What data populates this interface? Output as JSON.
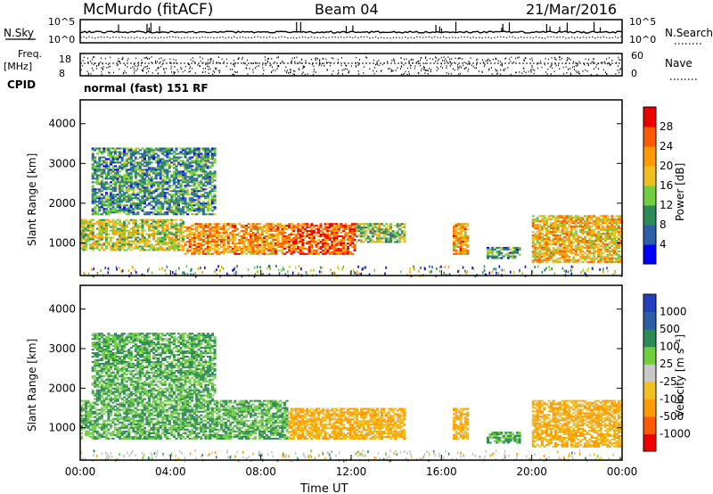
{
  "header": {
    "station": "McMurdo (fitACF)",
    "beam": "Beam 04",
    "date": "21/Mar/2016"
  },
  "side_labels": {
    "nsky": "N.Sky",
    "nsearch": "N.Search",
    "freq_line1": "Freq.",
    "freq_line2": "[MHz]",
    "nave": "Nave",
    "cpid": "CPID",
    "cpid_value": "normal (fast) 151 RF",
    "noise_ticks_left": [
      "10^5",
      "10^0"
    ],
    "noise_ticks_right": [
      "10^5",
      "10^0"
    ],
    "freq_ticks": [
      "18",
      "8"
    ],
    "nave_ticks": [
      "60",
      "0"
    ]
  },
  "colors": {
    "power": [
      "#0000ff",
      "#2c5fa8",
      "#2e8b57",
      "#6fcf3f",
      "#f0c020",
      "#ff9a00",
      "#ff5a00",
      "#ee0000"
    ],
    "velocity": [
      "#ee0000",
      "#ff5a00",
      "#ff9a00",
      "#f0c020",
      "#c8c8c8",
      "#6fcf3f",
      "#2e8b57",
      "#2c5fa8",
      "#2040c0"
    ],
    "frame": "#000000"
  },
  "chart_data": [
    {
      "type": "heatmap",
      "title": "Power",
      "xlabel": "Time UT",
      "ylabel": "Slant Range [km]",
      "x_ticks": [
        "00:00",
        "04:00",
        "08:00",
        "12:00",
        "16:00",
        "20:00",
        "00:00"
      ],
      "y_ticks": [
        "1000",
        "2000",
        "3000",
        "4000"
      ],
      "ylim": [
        180,
        4600
      ],
      "colorbar_label": "Power [dB]",
      "colorbar_ticks": [
        "4",
        "8",
        "12",
        "16",
        "20",
        "24",
        "28"
      ],
      "colorbar_range": [
        0,
        32
      ],
      "echo_regions": [
        {
          "t0": 0.0,
          "t1": 4.6,
          "r0": 800,
          "r1": 1600,
          "level": 16
        },
        {
          "t0": 4.6,
          "t1": 9.0,
          "r0": 700,
          "r1": 1500,
          "level": 22
        },
        {
          "t0": 9.0,
          "t1": 12.2,
          "r0": 700,
          "r1": 1500,
          "level": 26
        },
        {
          "t0": 12.2,
          "t1": 14.4,
          "r0": 1000,
          "r1": 1500,
          "level": 14
        },
        {
          "t0": 16.5,
          "t1": 17.2,
          "r0": 700,
          "r1": 1500,
          "level": 22
        },
        {
          "t0": 18.0,
          "t1": 19.5,
          "r0": 600,
          "r1": 900,
          "level": 10
        },
        {
          "t0": 20.0,
          "t1": 24.0,
          "r0": 500,
          "r1": 1700,
          "level": 20
        },
        {
          "t0": 0.5,
          "t1": 6.0,
          "r0": 1700,
          "r1": 3400,
          "level": 10
        }
      ]
    },
    {
      "type": "heatmap",
      "title": "Velocity",
      "xlabel": "Time UT",
      "ylabel": "Slant Range [km]",
      "x_ticks": [
        "00:00",
        "04:00",
        "08:00",
        "12:00",
        "16:00",
        "20:00",
        "00:00"
      ],
      "y_ticks": [
        "1000",
        "2000",
        "3000",
        "4000"
      ],
      "ylim": [
        180,
        4600
      ],
      "colorbar_label": "Velocity [m s⁻¹]",
      "colorbar_ticks": [
        "1000",
        "500",
        "100",
        "25",
        "-25",
        "-100",
        "-500",
        "-1000"
      ],
      "echo_regions": [
        {
          "t0": 0.0,
          "t1": 9.2,
          "r0": 700,
          "r1": 1700,
          "velocity": 100
        },
        {
          "t0": 9.2,
          "t1": 14.4,
          "r0": 700,
          "r1": 1500,
          "velocity": -100
        },
        {
          "t0": 16.5,
          "t1": 17.2,
          "r0": 700,
          "r1": 1500,
          "velocity": -100
        },
        {
          "t0": 18.0,
          "t1": 19.5,
          "r0": 600,
          "r1": 900,
          "velocity": 100
        },
        {
          "t0": 20.0,
          "t1": 24.0,
          "r0": 500,
          "r1": 1700,
          "velocity": -100
        },
        {
          "t0": 0.5,
          "t1": 6.0,
          "r0": 1700,
          "r1": 3400,
          "velocity": 100
        }
      ]
    }
  ]
}
